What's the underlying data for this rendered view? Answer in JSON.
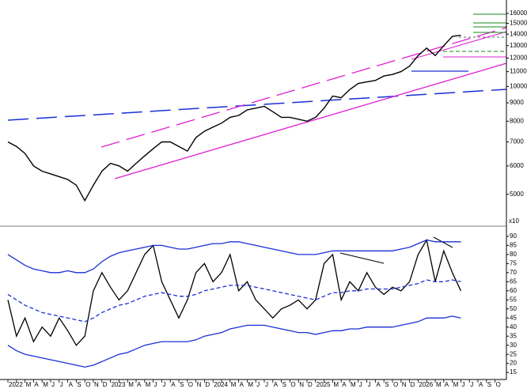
{
  "chart_data": [
    {
      "type": "line",
      "log_scale": true,
      "color": "#000000",
      "values": [
        7000,
        6800,
        6500,
        6000,
        5800,
        5700,
        5600,
        5500,
        5300,
        4800,
        5300,
        5800,
        6100,
        6000,
        5800,
        6100,
        6400,
        6700,
        7000,
        7000,
        6800,
        6600,
        7200,
        7500,
        7700,
        7900,
        8200,
        8300,
        8600,
        8700,
        8800,
        8500,
        8200,
        8200,
        8100,
        8000,
        8200,
        8700,
        9400,
        9300,
        9800,
        10200,
        10300,
        10400,
        10700,
        10800,
        11000,
        11400,
        12200,
        12800,
        12200,
        13000,
        13800,
        13900,
        null,
        null,
        null,
        null
      ],
      "ylim": [
        4200,
        17000
      ],
      "yticks": [
        5000,
        6000,
        7000,
        8000,
        9000,
        10000,
        11000,
        12000,
        13000,
        14000,
        15000,
        16000
      ],
      "y_multiplier": "x10"
    },
    {
      "type": "line",
      "categories": [
        "2022",
        null,
        "M",
        "A",
        "M",
        "J",
        "J",
        "A",
        "S",
        "O",
        "N",
        "D",
        "2023",
        null,
        "M",
        "A",
        "M",
        "J",
        "J",
        "A",
        "S",
        "O",
        "N",
        "D",
        "2024",
        null,
        "M",
        "A",
        "M",
        "J",
        "J",
        "A",
        "S",
        "O",
        "N",
        "D",
        "2025",
        null,
        "M",
        "A",
        "M",
        "J",
        "J",
        "A",
        "S",
        "O",
        "N",
        "D",
        "2026",
        null,
        "M",
        "A",
        "M",
        "J",
        "J",
        "A",
        "S",
        "O"
      ],
      "series": [
        {
          "color": "#000000",
          "style": "solid",
          "values": [
            55,
            35,
            45,
            32,
            40,
            35,
            45,
            38,
            30,
            35,
            60,
            70,
            62,
            55,
            60,
            70,
            80,
            85,
            65,
            55,
            45,
            55,
            70,
            75,
            65,
            70,
            80,
            60,
            65,
            55,
            50,
            45,
            50,
            52,
            55,
            50,
            55,
            75,
            80,
            55,
            65,
            60,
            70,
            62,
            58,
            62,
            60,
            65,
            80,
            88,
            65,
            82,
            70,
            60,
            null,
            null,
            null,
            null
          ]
        },
        {
          "color": "#1a2fd6",
          "style": "solid",
          "values": [
            80,
            77,
            74,
            72,
            71,
            70,
            70,
            71,
            70,
            70,
            72,
            76,
            79,
            81,
            82,
            83,
            84,
            85,
            85,
            84,
            83,
            83,
            84,
            85,
            86,
            86,
            87,
            87,
            86,
            85,
            84,
            83,
            82,
            81,
            80,
            80,
            80,
            81,
            82,
            82,
            82,
            82,
            82,
            82,
            82,
            82,
            83,
            84,
            86,
            88,
            87,
            87,
            87,
            87,
            null,
            null,
            null,
            null
          ]
        },
        {
          "color": "#1a2fd6",
          "style": "dashed",
          "values": [
            58,
            55,
            52,
            50,
            48,
            47,
            46,
            45,
            44,
            43,
            45,
            48,
            50,
            52,
            53,
            55,
            57,
            58,
            59,
            58,
            57,
            57,
            58,
            60,
            61,
            62,
            63,
            63,
            63,
            62,
            61,
            60,
            59,
            58,
            57,
            56,
            55,
            57,
            59,
            59,
            60,
            60,
            61,
            61,
            61,
            61,
            62,
            63,
            64,
            66,
            65,
            65,
            66,
            65,
            null,
            null,
            null,
            null
          ]
        },
        {
          "color": "#1a2fd6",
          "style": "solid",
          "values": [
            30,
            27,
            25,
            24,
            23,
            22,
            21,
            20,
            19,
            18,
            19,
            21,
            23,
            25,
            26,
            28,
            30,
            31,
            32,
            32,
            32,
            32,
            33,
            35,
            36,
            37,
            39,
            40,
            41,
            41,
            41,
            40,
            39,
            38,
            37,
            37,
            36,
            37,
            38,
            38,
            39,
            39,
            40,
            40,
            40,
            40,
            41,
            42,
            43,
            45,
            45,
            45,
            46,
            45,
            null,
            null,
            null,
            null
          ]
        }
      ],
      "ylim": [
        12,
        93
      ],
      "yticks": [
        15,
        20,
        25,
        30,
        35,
        40,
        45,
        50,
        55,
        60,
        65,
        70,
        75,
        80,
        85,
        90
      ]
    }
  ]
}
